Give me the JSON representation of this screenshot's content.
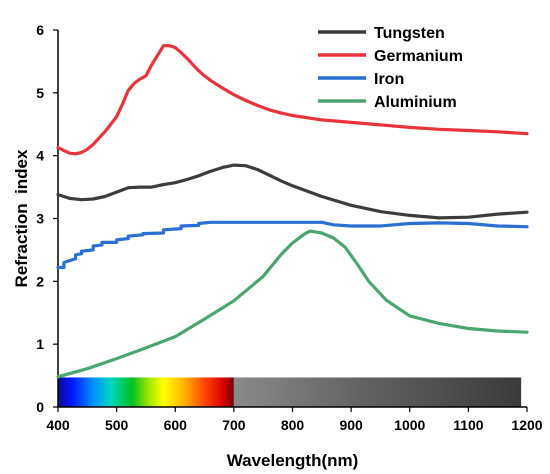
{
  "chart_data": {
    "type": "line",
    "title": "",
    "xlabel": "Wavelength(nm)",
    "ylabel": "Refraction  index",
    "xlim": [
      400,
      1200
    ],
    "ylim": [
      0,
      6
    ],
    "xticks": [
      400,
      500,
      600,
      700,
      800,
      900,
      1000,
      1100,
      1200
    ],
    "yticks": [
      0,
      1,
      2,
      3,
      4,
      5,
      6
    ],
    "xtick_labels": [
      "400",
      "500",
      "600",
      "700",
      "800",
      "900",
      "1000",
      "1100",
      "1200"
    ],
    "ytick_labels": [
      "0",
      "1",
      "2",
      "3",
      "4",
      "5",
      "6"
    ],
    "grid": false,
    "legend_position": "top-right",
    "spectrum_bar": {
      "visible_range": [
        400,
        700
      ],
      "infrared_range": [
        700,
        1190
      ],
      "y_range": [
        0,
        0.47
      ]
    },
    "series": [
      {
        "name": "Tungsten",
        "color": "#3c3c3c",
        "x": [
          400,
          420,
          440,
          460,
          480,
          500,
          520,
          540,
          560,
          580,
          600,
          620,
          640,
          660,
          680,
          700,
          720,
          740,
          760,
          780,
          800,
          850,
          900,
          950,
          1000,
          1050,
          1100,
          1150,
          1200
        ],
        "y": [
          3.38,
          3.32,
          3.3,
          3.31,
          3.35,
          3.42,
          3.49,
          3.5,
          3.5,
          3.54,
          3.57,
          3.62,
          3.68,
          3.75,
          3.81,
          3.85,
          3.84,
          3.78,
          3.69,
          3.6,
          3.52,
          3.35,
          3.21,
          3.11,
          3.05,
          3.01,
          3.02,
          3.07,
          3.1
        ]
      },
      {
        "name": "Germanium",
        "color": "#e8333a",
        "x": [
          400,
          410,
          420,
          430,
          440,
          450,
          460,
          470,
          480,
          490,
          500,
          510,
          520,
          530,
          540,
          550,
          560,
          570,
          580,
          590,
          600,
          610,
          620,
          630,
          640,
          650,
          660,
          680,
          700,
          720,
          740,
          760,
          780,
          800,
          850,
          900,
          950,
          1000,
          1050,
          1100,
          1150,
          1200
        ],
        "y": [
          4.13,
          4.08,
          4.04,
          4.03,
          4.05,
          4.1,
          4.18,
          4.28,
          4.38,
          4.5,
          4.62,
          4.82,
          5.04,
          5.15,
          5.22,
          5.27,
          5.45,
          5.6,
          5.75,
          5.75,
          5.72,
          5.64,
          5.55,
          5.45,
          5.35,
          5.27,
          5.2,
          5.08,
          4.97,
          4.88,
          4.8,
          4.73,
          4.68,
          4.64,
          4.57,
          4.53,
          4.49,
          4.45,
          4.42,
          4.4,
          4.38,
          4.35
        ]
      },
      {
        "name": "Iron",
        "color": "#2a6fd4",
        "x": [
          400,
          410,
          410,
          420,
          430,
          430,
          440,
          440,
          460,
          460,
          475,
          475,
          500,
          500,
          520,
          520,
          545,
          545,
          580,
          580,
          610,
          610,
          640,
          640,
          660,
          700,
          750,
          800,
          850,
          870,
          900,
          950,
          1000,
          1050,
          1100,
          1150,
          1200
        ],
        "y": [
          2.22,
          2.22,
          2.3,
          2.33,
          2.36,
          2.42,
          2.44,
          2.48,
          2.5,
          2.56,
          2.58,
          2.62,
          2.62,
          2.66,
          2.68,
          2.72,
          2.74,
          2.76,
          2.77,
          2.82,
          2.84,
          2.88,
          2.89,
          2.92,
          2.94,
          2.94,
          2.94,
          2.94,
          2.94,
          2.9,
          2.88,
          2.88,
          2.92,
          2.93,
          2.92,
          2.88,
          2.87
        ]
      },
      {
        "name": "Aluminium",
        "color": "#4aa66e",
        "x": [
          400,
          450,
          500,
          550,
          600,
          650,
          700,
          750,
          780,
          800,
          820,
          830,
          850,
          870,
          890,
          910,
          930,
          960,
          1000,
          1050,
          1100,
          1150,
          1200
        ],
        "y": [
          0.48,
          0.61,
          0.77,
          0.94,
          1.12,
          1.4,
          1.69,
          2.08,
          2.42,
          2.61,
          2.75,
          2.8,
          2.77,
          2.69,
          2.54,
          2.28,
          2.0,
          1.7,
          1.45,
          1.33,
          1.25,
          1.21,
          1.19
        ]
      }
    ]
  }
}
